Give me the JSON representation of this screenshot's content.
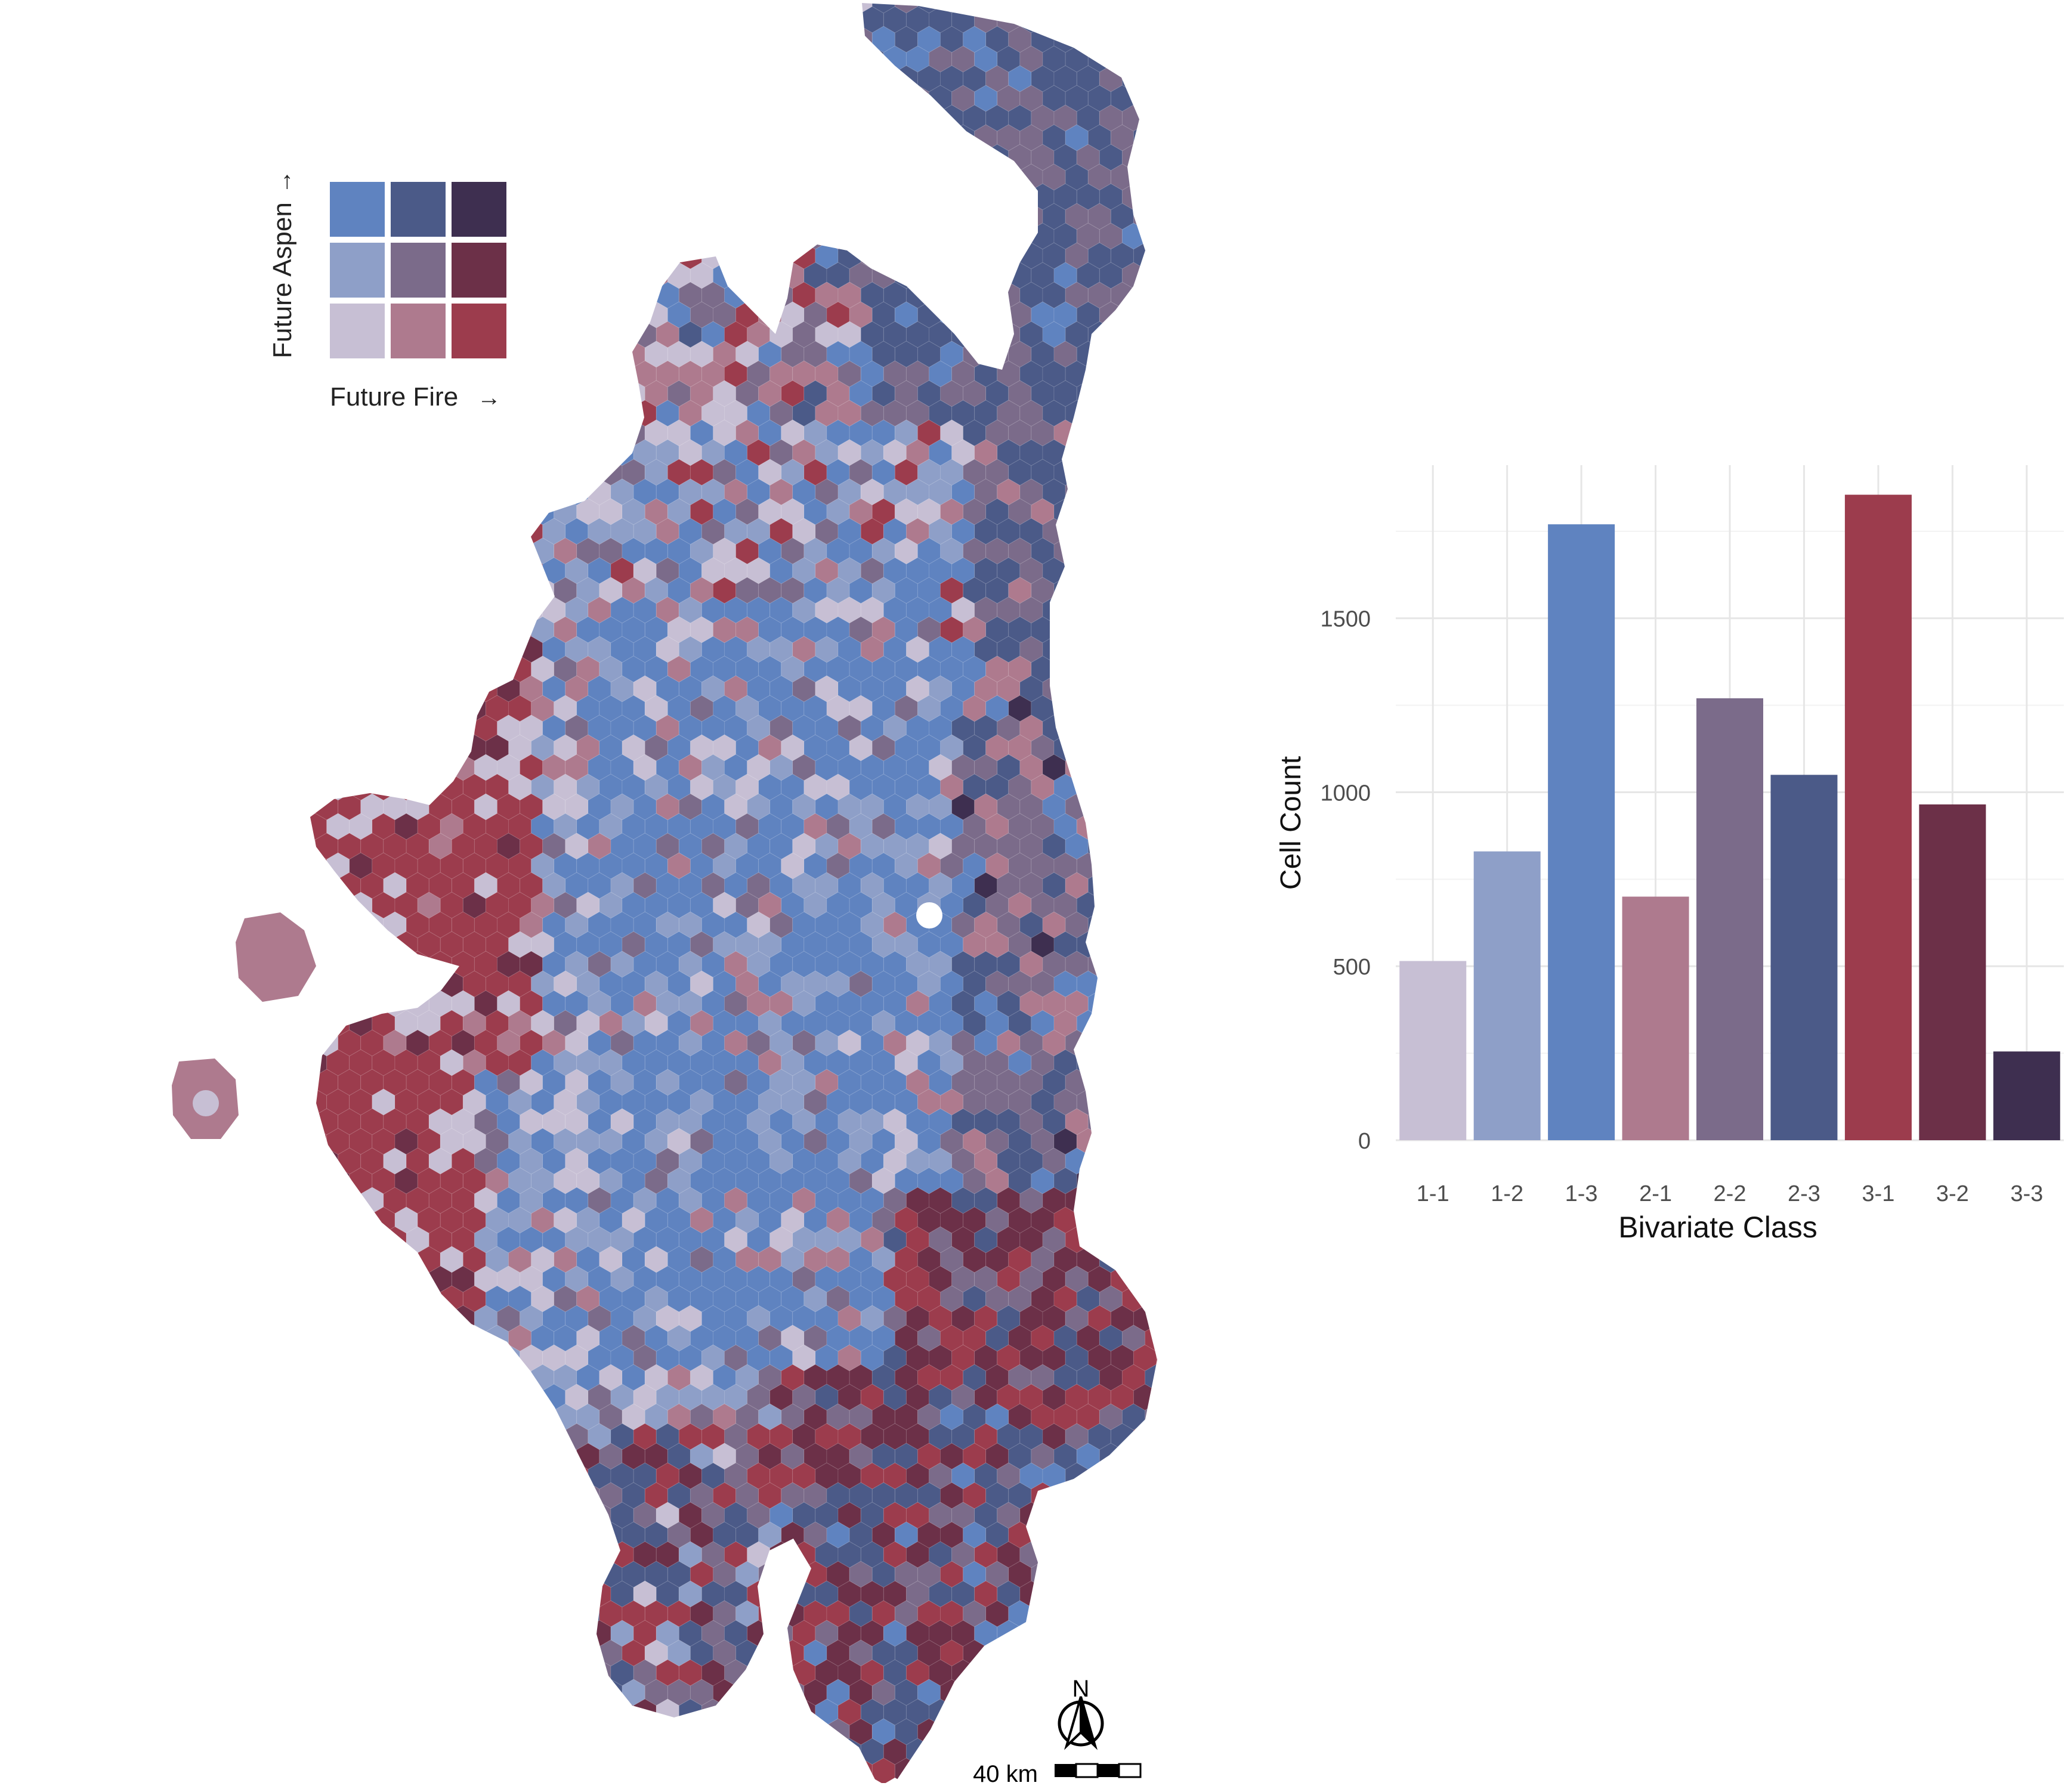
{
  "map": {
    "legend": {
      "y_label": "Future Aspen",
      "x_label": "Future Fire",
      "arrow_up": "→",
      "arrow_right": "→",
      "grid_colors": [
        [
          "#5f83c0",
          "#4b5a88",
          "#3e2f50"
        ],
        [
          "#8e9fc8",
          "#7b6b8a",
          "#6c3048"
        ],
        [
          "#c7bfd4",
          "#ae7a8e",
          "#9c3c4d"
        ]
      ]
    },
    "north_label": "N",
    "scale_label": "40 km"
  },
  "chart_data": {
    "type": "bar",
    "categories": [
      "1-1",
      "1-2",
      "1-3",
      "2-1",
      "2-2",
      "2-3",
      "3-1",
      "3-2",
      "3-3"
    ],
    "values": [
      515,
      830,
      1770,
      700,
      1270,
      1050,
      1855,
      965,
      255
    ],
    "colors": [
      "#c7bfd4",
      "#8e9fc8",
      "#5f83c0",
      "#ae7a8e",
      "#7b6b8a",
      "#4b5a88",
      "#9c3c4d",
      "#6c3048",
      "#3e2f50"
    ],
    "xlabel": "Bivariate Class",
    "ylabel": "Cell Count",
    "yticks": [
      0,
      500,
      1000,
      1500
    ],
    "ylim": [
      0,
      1940
    ],
    "grid": true
  }
}
